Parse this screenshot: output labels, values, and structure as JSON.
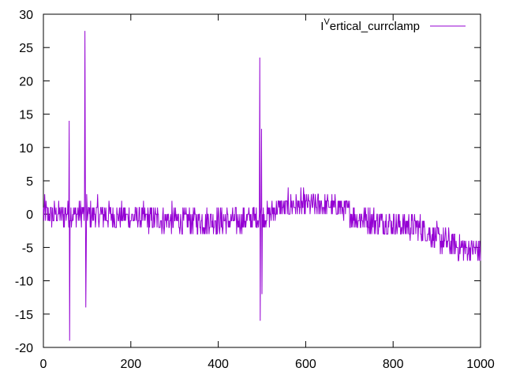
{
  "chart_data": {
    "type": "line",
    "title": "",
    "xlabel": "",
    "ylabel": "",
    "xlim": [
      0,
      1000
    ],
    "ylim": [
      -20,
      30
    ],
    "x_ticks": [
      0,
      200,
      400,
      600,
      800,
      1000
    ],
    "y_ticks": [
      -20,
      -15,
      -10,
      -5,
      0,
      5,
      10,
      15,
      20,
      25,
      30
    ],
    "grid": false,
    "legend_position": "top-right",
    "series": [
      {
        "name": "Vertical_currclamp",
        "legend_prefix": "I",
        "legend_superscript": "V",
        "legend_rest": "ertical_currclamp",
        "color": "#9400d3",
        "baseline": [
          [
            0,
            0
          ],
          [
            100,
            0
          ],
          [
            200,
            -0.5
          ],
          [
            300,
            -1
          ],
          [
            450,
            -1
          ],
          [
            520,
            0
          ],
          [
            540,
            1
          ],
          [
            600,
            1.5
          ],
          [
            680,
            1
          ],
          [
            720,
            -0.5
          ],
          [
            800,
            -1.5
          ],
          [
            860,
            -2
          ],
          [
            900,
            -3.5
          ],
          [
            950,
            -5
          ],
          [
            1000,
            -5.5
          ]
        ],
        "noise_amplitude": [
          [
            0,
            2
          ],
          [
            100,
            2
          ],
          [
            200,
            2
          ],
          [
            450,
            2
          ],
          [
            540,
            1.7
          ],
          [
            680,
            1.7
          ],
          [
            720,
            2
          ],
          [
            860,
            2
          ],
          [
            950,
            2
          ],
          [
            1000,
            2
          ]
        ],
        "spikes": [
          {
            "x": 59,
            "y": 14
          },
          {
            "x": 60,
            "y": -19
          },
          {
            "x": 95,
            "y": 27.5
          },
          {
            "x": 96,
            "y": 5
          },
          {
            "x": 97,
            "y": -14
          },
          {
            "x": 98,
            "y": -6
          },
          {
            "x": 99,
            "y": 3
          },
          {
            "x": 495,
            "y": 23.5
          },
          {
            "x": 496,
            "y": -16
          },
          {
            "x": 499,
            "y": 12.8
          },
          {
            "x": 500,
            "y": -12
          }
        ]
      }
    ]
  }
}
